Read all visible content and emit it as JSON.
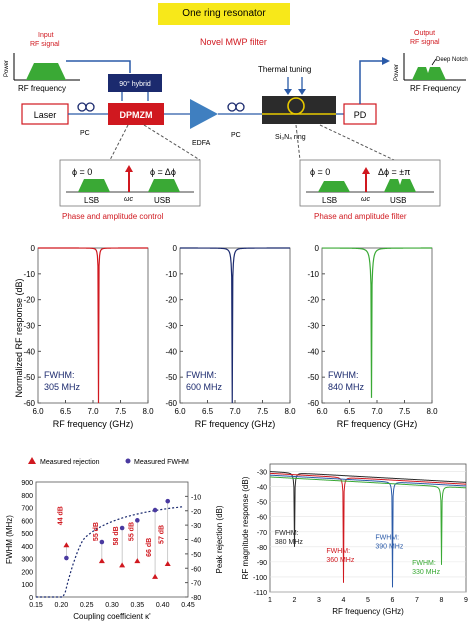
{
  "title": "One ring resonator",
  "diagram": {
    "filter_title": "Novel MWP filter",
    "input_signal": "Input RF signal",
    "output_signal": "Output RF signal",
    "power_label": "Power",
    "rf_frequency_in": "RF frequency",
    "rf_frequency_out": "RF Frequency",
    "deep_notch": "Deep Notch",
    "hybrid": "90° hybrid",
    "dpmzm": "DPMZM",
    "laser": "Laser",
    "pc": "PC",
    "edfa": "EDFA",
    "thermal_tuning": "Thermal tuning",
    "ring": "Si₃N₄ ring",
    "pd": "PD",
    "left_box": {
      "phi1": "ϕ = 0",
      "phi2": "ϕ = Δϕ",
      "lsb": "LSB",
      "usb": "USB",
      "omega": "ωc"
    },
    "right_box": {
      "phi1": "ϕ = 0",
      "phi2": "Δϕ = ±π",
      "lsb": "LSB",
      "usb": "USB",
      "omega": "ωc"
    },
    "left_caption": "Phase and amplitude control",
    "right_caption": "Phase and amplitude filter",
    "colors": {
      "red": "#d0181f",
      "blue": "#2a5aa8",
      "green": "#3aa935",
      "navy": "#1b2a6e"
    }
  },
  "chart_data": [
    {
      "type": "line",
      "ylabel": "Normalized RF response (dB)",
      "xlabel": "RF frequency (GHz)",
      "xlim": [
        6.0,
        8.0
      ],
      "ylim": [
        -60,
        0
      ],
      "xticks": [
        "6.0",
        "6.5",
        "7.0",
        "7.5",
        "8.0"
      ],
      "yticks": [
        "0",
        "-10",
        "-20",
        "-30",
        "-40",
        "-50",
        "-60"
      ],
      "panels": [
        {
          "color": "#d0181f",
          "center": 7.1,
          "depth": -60,
          "annotation": "FWHM:\n305 MHz",
          "fwhm_label": "FWHM:",
          "fwhm_value": "305 MHz"
        },
        {
          "color": "#1b2a6e",
          "center": 6.95,
          "depth": -60,
          "annotation": "FWHM:\n600 MHz",
          "fwhm_label": "FWHM:",
          "fwhm_value": "600 MHz"
        },
        {
          "color": "#3aa935",
          "center": 6.9,
          "depth": -58,
          "annotation": "FWHM:\n840 MHz",
          "fwhm_label": "FWHM:",
          "fwhm_value": "840 MHz"
        }
      ]
    },
    {
      "type": "scatter",
      "legend": [
        "Measured rejection",
        "Measured FWHM"
      ],
      "xlabel": "Coupling coefficient κ'",
      "ylabel": "FWHM (MHz)",
      "y2label": "Peak rejection (dB)",
      "xlim": [
        0.15,
        0.45
      ],
      "ylim": [
        0,
        900
      ],
      "y2lim": [
        -80,
        0
      ],
      "xticks": [
        "0.15",
        "0.20",
        "0.25",
        "0.30",
        "0.35",
        "0.40",
        "0.45"
      ],
      "yticks": [
        "0",
        "100",
        "200",
        "300",
        "400",
        "500",
        "600",
        "700",
        "800",
        "900"
      ],
      "y2ticks": [
        "-10",
        "-20",
        "-30",
        "-40",
        "-50",
        "-60",
        "-70",
        "-80"
      ],
      "fwhm_points": [
        [
          0.21,
          305
        ],
        [
          0.28,
          430
        ],
        [
          0.32,
          540
        ],
        [
          0.35,
          600
        ],
        [
          0.385,
          680
        ],
        [
          0.41,
          750
        ]
      ],
      "rejection_points": [
        [
          0.21,
          -44
        ],
        [
          0.28,
          -55
        ],
        [
          0.32,
          -58
        ],
        [
          0.35,
          -55
        ],
        [
          0.385,
          -66
        ],
        [
          0.41,
          -57
        ]
      ],
      "rejection_labels": [
        "44 dB",
        "55 dB",
        "58 dB",
        "55 dB",
        "66 dB",
        "57 dB"
      ]
    },
    {
      "type": "line",
      "xlabel": "RF frequency (GHz)",
      "ylabel": "RF magnitude response (dB)",
      "xlim": [
        1,
        9
      ],
      "ylim": [
        -110,
        -25
      ],
      "xticks": [
        "1",
        "2",
        "3",
        "4",
        "5",
        "6",
        "7",
        "8",
        "9"
      ],
      "yticks": [
        "-30",
        "-40",
        "-50",
        "-60",
        "-70",
        "-80",
        "-90",
        "-100",
        "-110"
      ],
      "series": [
        {
          "color": "#2a2a2a",
          "center": 2.0,
          "depth": -80,
          "label": "FWHM:\n380 MHz",
          "fwhm_label": "FWHM:",
          "fwhm_value": "380 MHz"
        },
        {
          "color": "#d0181f",
          "center": 4.0,
          "depth": -108,
          "label": "FWHM:\n360 MHz",
          "fwhm_label": "FWHM:",
          "fwhm_value": "360 MHz"
        },
        {
          "color": "#2a5aa8",
          "center": 6.0,
          "depth": -108,
          "label": "FWHM:\n390 MHz",
          "fwhm_label": "FWHM:",
          "fwhm_value": "390 MHz"
        },
        {
          "color": "#3aa935",
          "center": 8.0,
          "depth": -92,
          "label": "FWHM:\n330 MHz",
          "fwhm_label": "FWHM:",
          "fwhm_value": "330 MHz"
        }
      ]
    }
  ]
}
